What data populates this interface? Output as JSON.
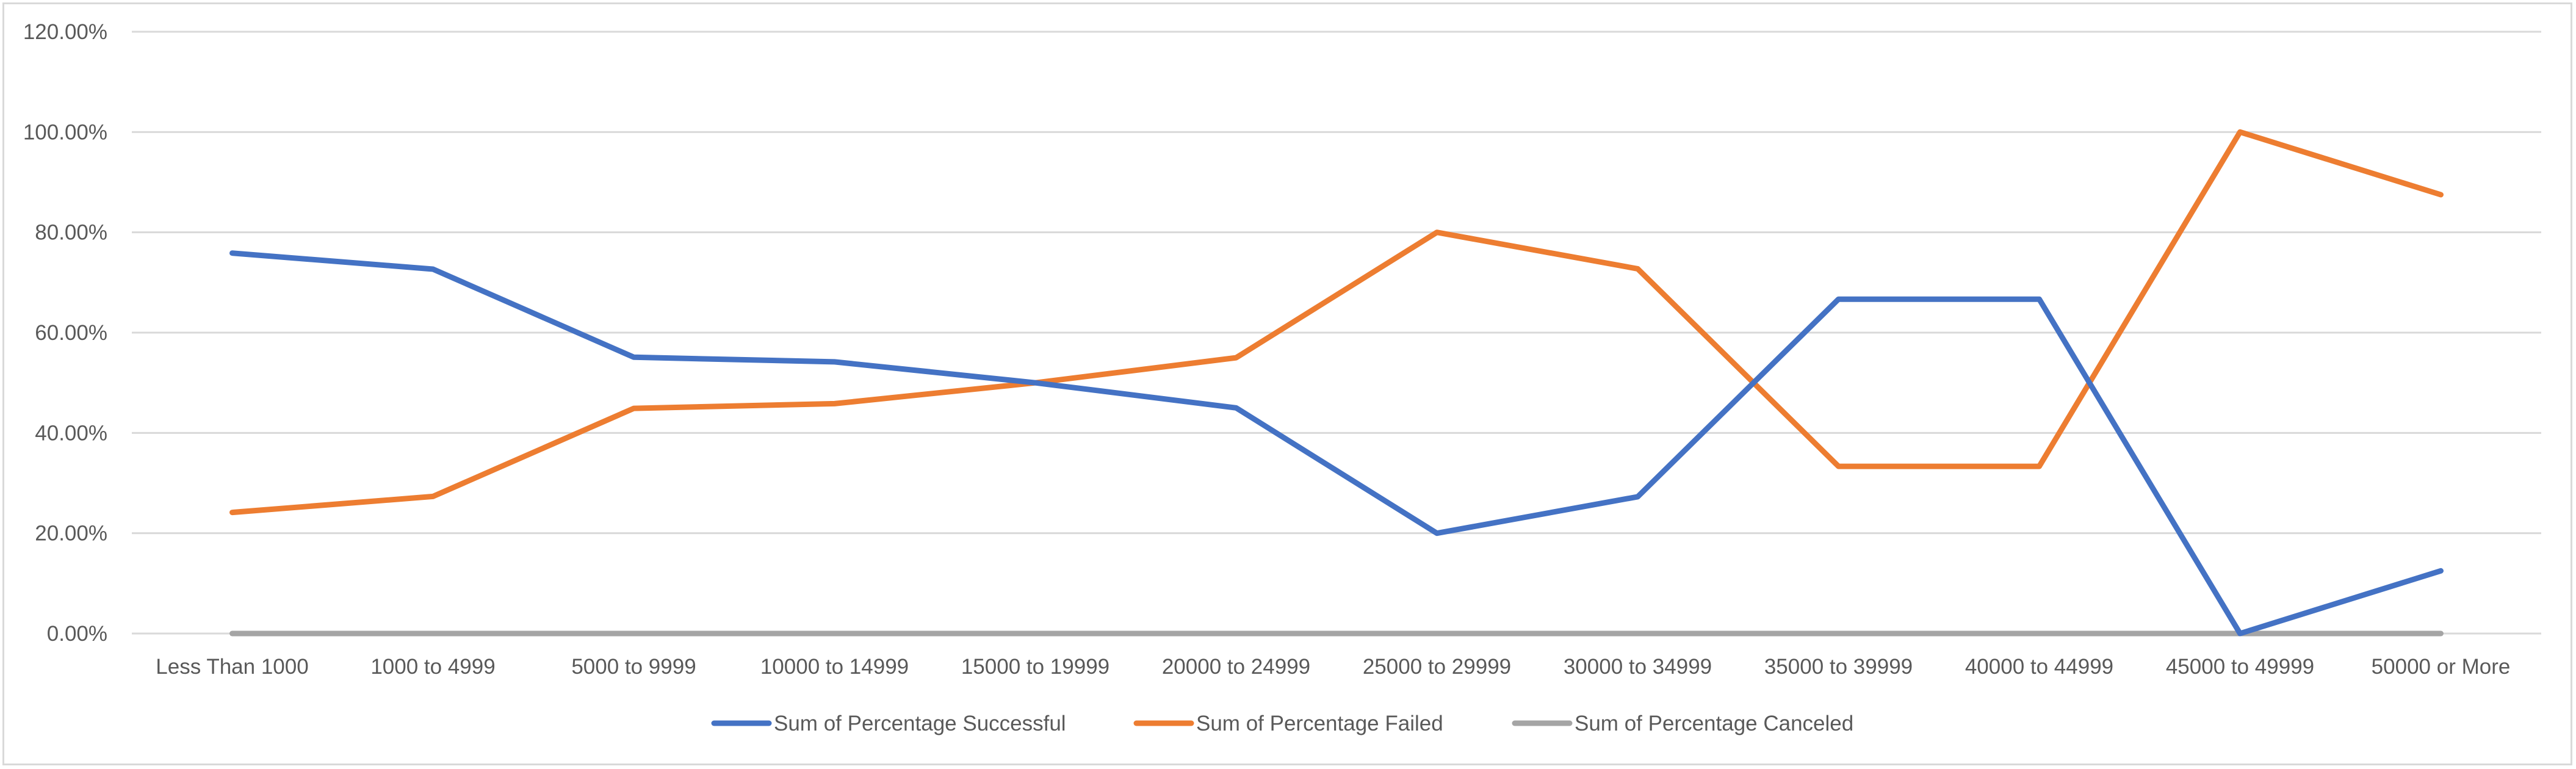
{
  "chart_data": {
    "type": "line",
    "categories": [
      "Less Than 1000",
      "1000 to 4999",
      "5000 to 9999",
      "10000 to 14999",
      "15000 to 19999",
      "20000 to 24999",
      "25000 to 29999",
      "30000 to 34999",
      "35000 to 39999",
      "40000 to 44999",
      "45000 to 49999",
      "50000 or More"
    ],
    "y_ticks": [
      "0.00%",
      "20.00%",
      "40.00%",
      "60.00%",
      "80.00%",
      "100.00%",
      "120.00%"
    ],
    "ylim": [
      0,
      120
    ],
    "grid": true,
    "legend_position": "bottom",
    "series": [
      {
        "name": "Sum of Percentage Successful",
        "color": "#4472c4",
        "values": [
          75.86,
          72.66,
          55.1,
          54.17,
          50.0,
          45.0,
          20.0,
          27.27,
          66.67,
          66.67,
          0.0,
          12.5
        ]
      },
      {
        "name": "Sum of Percentage Failed",
        "color": "#ed7d31",
        "values": [
          24.14,
          27.34,
          44.9,
          45.83,
          50.0,
          55.0,
          80.0,
          72.73,
          33.33,
          33.33,
          100.0,
          87.5
        ]
      },
      {
        "name": "Sum of Percentage Canceled",
        "color": "#a5a5a5",
        "values": [
          0,
          0,
          0,
          0,
          0,
          0,
          0,
          0,
          0,
          0,
          0,
          0
        ]
      }
    ]
  }
}
